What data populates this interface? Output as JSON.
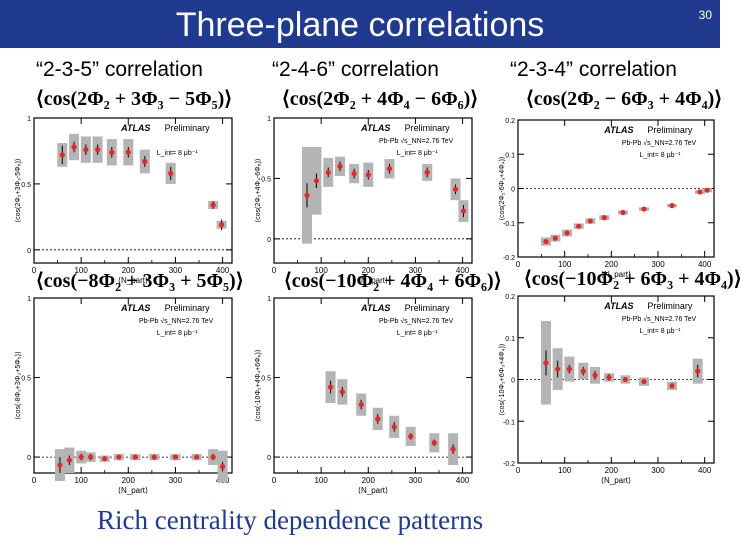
{
  "slide": {
    "title": "Three-plane correlations",
    "page_number": "30",
    "footer": "Rich centrality dependence patterns",
    "col_titles": [
      "“2-3-5” correlation",
      "“2-4-6” correlation",
      "“2-3-4” correlation"
    ],
    "formulas": [
      "⟨cos(2Φ₂ + 3Φ₃ − 5Φ₅)⟩",
      "⟨cos(2Φ₂ + 4Φ₄ − 6Φ₆)⟩",
      "⟨cos(2Φ₂ − 6Φ₃ + 4Φ₄)⟩",
      "⟨cos(−8Φ₂ + 3Φ₃ + 5Φ₅)⟩",
      "⟨cos(−10Φ₂ + 4Φ₄ + 6Φ₆)⟩",
      "⟨cos(−10Φ₂ + 6Φ₃ + 4Φ₄)⟩"
    ],
    "colors": {
      "header": "#1f3a8f",
      "marker": "#e8262a",
      "band": "#b4b4b4"
    }
  },
  "chart_data": [
    {
      "type": "scatter",
      "atlas": "ATLAS",
      "preliminary": "Preliminary",
      "lumi": "L_int= 8 μb⁻¹",
      "xlabel": "⟨N_part⟩",
      "ylabel": "⟨cos(2Φ₂+3Φ₃-5Φ₅)⟩",
      "xlim": [
        0,
        420
      ],
      "ylim": [
        -0.1,
        1.0
      ],
      "xticks": [
        "0",
        "100",
        "200",
        "300",
        "400"
      ],
      "xtick_values": [
        0,
        100,
        200,
        300,
        400
      ],
      "yticks": [
        "0",
        "0.5",
        "1"
      ],
      "ytick_values": [
        0,
        0.5,
        1
      ],
      "x": [
        60,
        85,
        110,
        135,
        165,
        200,
        235,
        290,
        380,
        398
      ],
      "y": [
        0.72,
        0.78,
        0.76,
        0.76,
        0.74,
        0.74,
        0.67,
        0.58,
        0.34,
        0.19
      ],
      "err": [
        0.07,
        0.04,
        0.04,
        0.04,
        0.04,
        0.04,
        0.04,
        0.05,
        0.03,
        0.04
      ],
      "sys": [
        0.09,
        0.1,
        0.1,
        0.1,
        0.1,
        0.1,
        0.09,
        0.08,
        0.03,
        0.03
      ]
    },
    {
      "type": "scatter",
      "atlas": "ATLAS",
      "preliminary": "Preliminary",
      "collision": "Pb-Pb √s_NN=2.76 TeV",
      "lumi": "L_int= 8 μb⁻¹",
      "xlabel": "⟨N_part⟩",
      "ylabel": "⟨cos(2Φ₂+4Φ₄-6Φ₆)⟩",
      "xlim": [
        0,
        420
      ],
      "ylim": [
        -0.2,
        1.0
      ],
      "xticks": [
        "0",
        "100",
        "200",
        "300",
        "400"
      ],
      "xtick_values": [
        0,
        100,
        200,
        300,
        400
      ],
      "yticks": [
        "0",
        "0.5",
        "1"
      ],
      "ytick_values": [
        0,
        0.5,
        1
      ],
      "x": [
        70,
        90,
        115,
        140,
        170,
        200,
        245,
        325,
        385,
        402
      ],
      "y": [
        0.36,
        0.48,
        0.55,
        0.6,
        0.54,
        0.53,
        0.58,
        0.55,
        0.41,
        0.23
      ],
      "err": [
        0.1,
        0.06,
        0.04,
        0.04,
        0.04,
        0.04,
        0.04,
        0.04,
        0.04,
        0.05
      ],
      "sys": [
        0.4,
        0.28,
        0.12,
        0.08,
        0.08,
        0.1,
        0.08,
        0.07,
        0.09,
        0.09
      ]
    },
    {
      "type": "scatter",
      "atlas": "ATLAS",
      "preliminary": "Preliminary",
      "collision": "Pb-Pb √s_NN=2.76 TeV",
      "lumi": "L_int= 8 μb⁻¹",
      "xlabel": "⟨N_part⟩",
      "ylabel": "⟨cos(2Φ₂-6Φ₃+4Φ₄)⟩",
      "xlim": [
        0,
        420
      ],
      "ylim": [
        -0.2,
        0.2
      ],
      "xticks": [
        "0",
        "100",
        "200",
        "300",
        "400"
      ],
      "xtick_values": [
        0,
        100,
        200,
        300,
        400
      ],
      "yticks": [
        "-0.2",
        "-0.1",
        "0",
        "0.1",
        "0.2"
      ],
      "ytick_values": [
        -0.2,
        -0.1,
        0,
        0.1,
        0.2
      ],
      "x": [
        60,
        80,
        105,
        130,
        155,
        185,
        225,
        270,
        330,
        390,
        405
      ],
      "y": [
        -0.155,
        -0.145,
        -0.13,
        -0.11,
        -0.095,
        -0.085,
        -0.07,
        -0.06,
        -0.05,
        -0.01,
        -0.005
      ],
      "err": [
        0.006,
        0.005,
        0.005,
        0.005,
        0.005,
        0.005,
        0.004,
        0.004,
        0.004,
        0.004,
        0.004
      ],
      "sys": [
        0.012,
        0.01,
        0.01,
        0.008,
        0.008,
        0.007,
        0.006,
        0.005,
        0.005,
        0.006,
        0.006
      ]
    },
    {
      "type": "scatter",
      "atlas": "ATLAS",
      "preliminary": "Preliminary",
      "collision": "Pb-Pb √s_NN=2.76 TeV",
      "lumi": "L_int= 8 μb⁻¹",
      "xlabel": "⟨N_part⟩",
      "ylabel": "⟨cos(-8Φ₂+3Φ₃+5Φ₅)⟩",
      "xlim": [
        0,
        420
      ],
      "ylim": [
        -0.1,
        1.0
      ],
      "xticks": [
        "0",
        "100",
        "200",
        "300",
        "400"
      ],
      "xtick_values": [
        0,
        100,
        200,
        300,
        400
      ],
      "yticks": [
        "0",
        "0.5",
        "1"
      ],
      "ytick_values": [
        0,
        0.5,
        1
      ],
      "x": [
        55,
        75,
        100,
        120,
        150,
        180,
        215,
        255,
        300,
        345,
        380,
        400
      ],
      "y": [
        -0.05,
        -0.02,
        0.0,
        0.0,
        -0.01,
        0.0,
        0.0,
        0.0,
        0.0,
        0.0,
        0.0,
        -0.06
      ],
      "err": [
        0.05,
        0.03,
        0.02,
        0.02,
        0.01,
        0.01,
        0.01,
        0.01,
        0.01,
        0.01,
        0.02,
        0.03
      ],
      "sys": [
        0.1,
        0.08,
        0.04,
        0.03,
        0.02,
        0.02,
        0.02,
        0.02,
        0.02,
        0.02,
        0.05,
        0.1
      ]
    },
    {
      "type": "scatter",
      "atlas": "ATLAS",
      "preliminary": "Preliminary",
      "collision": "Pb-Pb √s_NN=2.76 TeV",
      "lumi": "L_int= 8 μb⁻¹",
      "xlabel": "⟨N_part⟩",
      "ylabel": "⟨cos(-10Φ₂+4Φ₄+6Φ₆)⟩",
      "xlim": [
        0,
        420
      ],
      "ylim": [
        -0.1,
        1.0
      ],
      "xticks": [
        "0",
        "100",
        "200",
        "300",
        "400"
      ],
      "xtick_values": [
        0,
        100,
        200,
        300,
        400
      ],
      "yticks": [
        "0",
        "0.5",
        "1"
      ],
      "ytick_values": [
        0,
        0.5,
        1
      ],
      "x": [
        120,
        145,
        185,
        220,
        255,
        290,
        340,
        380
      ],
      "y": [
        0.44,
        0.41,
        0.33,
        0.24,
        0.19,
        0.13,
        0.09,
        0.05
      ],
      "err": [
        0.04,
        0.03,
        0.03,
        0.03,
        0.03,
        0.02,
        0.02,
        0.03
      ],
      "sys": [
        0.1,
        0.08,
        0.07,
        0.07,
        0.07,
        0.06,
        0.06,
        0.1
      ]
    },
    {
      "type": "scatter",
      "atlas": "ATLAS",
      "preliminary": "Preliminary",
      "collision": "Pb-Pb √s_NN=2.76 TeV",
      "lumi": "L_int= 8 μb⁻¹",
      "xlabel": "⟨N_part⟩",
      "ylabel": "⟨cos(-10Φ₂+6Φ₃+4Φ₄)⟩",
      "xlim": [
        0,
        420
      ],
      "ylim": [
        -0.2,
        0.2
      ],
      "xticks": [
        "0",
        "100",
        "200",
        "300",
        "400"
      ],
      "xtick_values": [
        0,
        100,
        200,
        300,
        400
      ],
      "yticks": [
        "-0.2",
        "-0.1",
        "0",
        "0.1",
        "0.2"
      ],
      "ytick_values": [
        -0.2,
        -0.1,
        0,
        0.1,
        0.2
      ],
      "x": [
        60,
        85,
        110,
        140,
        165,
        195,
        230,
        270,
        330,
        385
      ],
      "y": [
        0.04,
        0.025,
        0.025,
        0.02,
        0.01,
        0.005,
        0.0,
        -0.005,
        -0.015,
        0.02
      ],
      "err": [
        0.03,
        0.02,
        0.01,
        0.01,
        0.01,
        0.008,
        0.006,
        0.006,
        0.006,
        0.015
      ],
      "sys": [
        0.1,
        0.05,
        0.03,
        0.02,
        0.02,
        0.01,
        0.01,
        0.01,
        0.01,
        0.03
      ]
    }
  ]
}
